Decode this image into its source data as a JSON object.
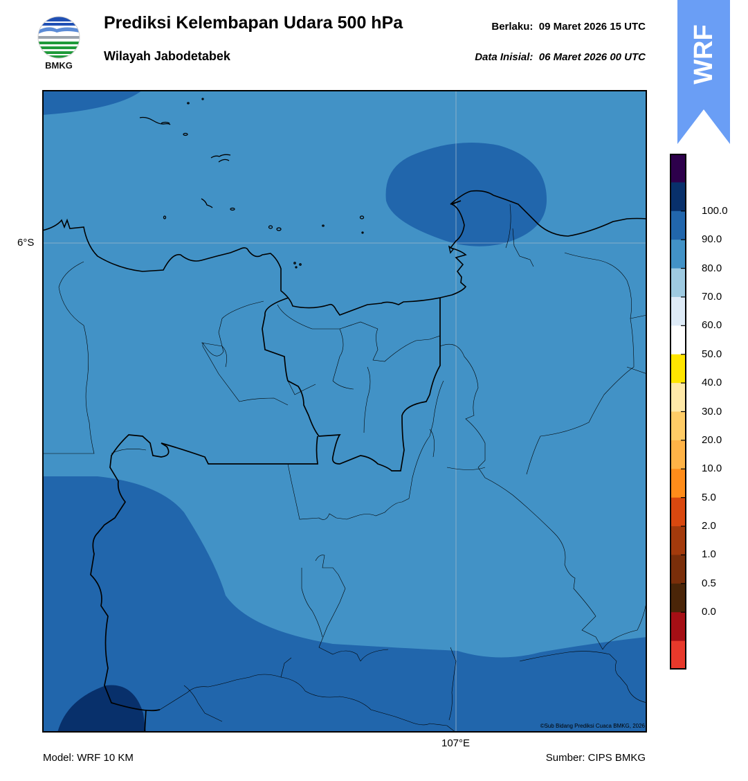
{
  "header": {
    "title": "Prediksi Kelembapan Udara 500 hPa",
    "subtitle": "Wilayah Jabodetabek",
    "valid_label": "Berlaku:",
    "valid_time": "09 Maret 2026 15 UTC",
    "init_label": "Data Inisial:",
    "init_time": "06 Maret 2026 00 UTC"
  },
  "logo": {
    "text": "BMKG",
    "icon": "bmkg-logo"
  },
  "badge": {
    "text": "WRF",
    "color": "#6a9ef5"
  },
  "map": {
    "lat_label": "6°S",
    "lon_label": "107°E",
    "credit": "©Sub Bidang Prediksi Cuaca BMKG, 2026",
    "colors": {
      "band_70_80": "#4292c6",
      "band_80_90": "#2166ac",
      "band_90_100": "#08306b",
      "coastline": "#000000"
    }
  },
  "colorbar": {
    "labels": [
      "100.0",
      "90.0",
      "80.0",
      "70.0",
      "60.0",
      "50.0",
      "40.0",
      "30.0",
      "20.0",
      "10.0",
      "5.0",
      "2.0",
      "1.0",
      "0.5",
      "0.0"
    ],
    "colors_top_to_bottom": [
      "#2d004b",
      "#08306b",
      "#2166ac",
      "#4292c6",
      "#9ecae1",
      "#deebf7",
      "#ffffff",
      "#ffe500",
      "#ffe9a8",
      "#ffcc66",
      "#ffb347",
      "#ff8c1a",
      "#d9480f",
      "#a33a0c",
      "#7a2e0a",
      "#4a2508",
      "#a50f15",
      "#e8392b"
    ]
  },
  "footer": {
    "model": "Model: WRF 10 KM",
    "source": "Sumber: CIPS BMKG"
  }
}
